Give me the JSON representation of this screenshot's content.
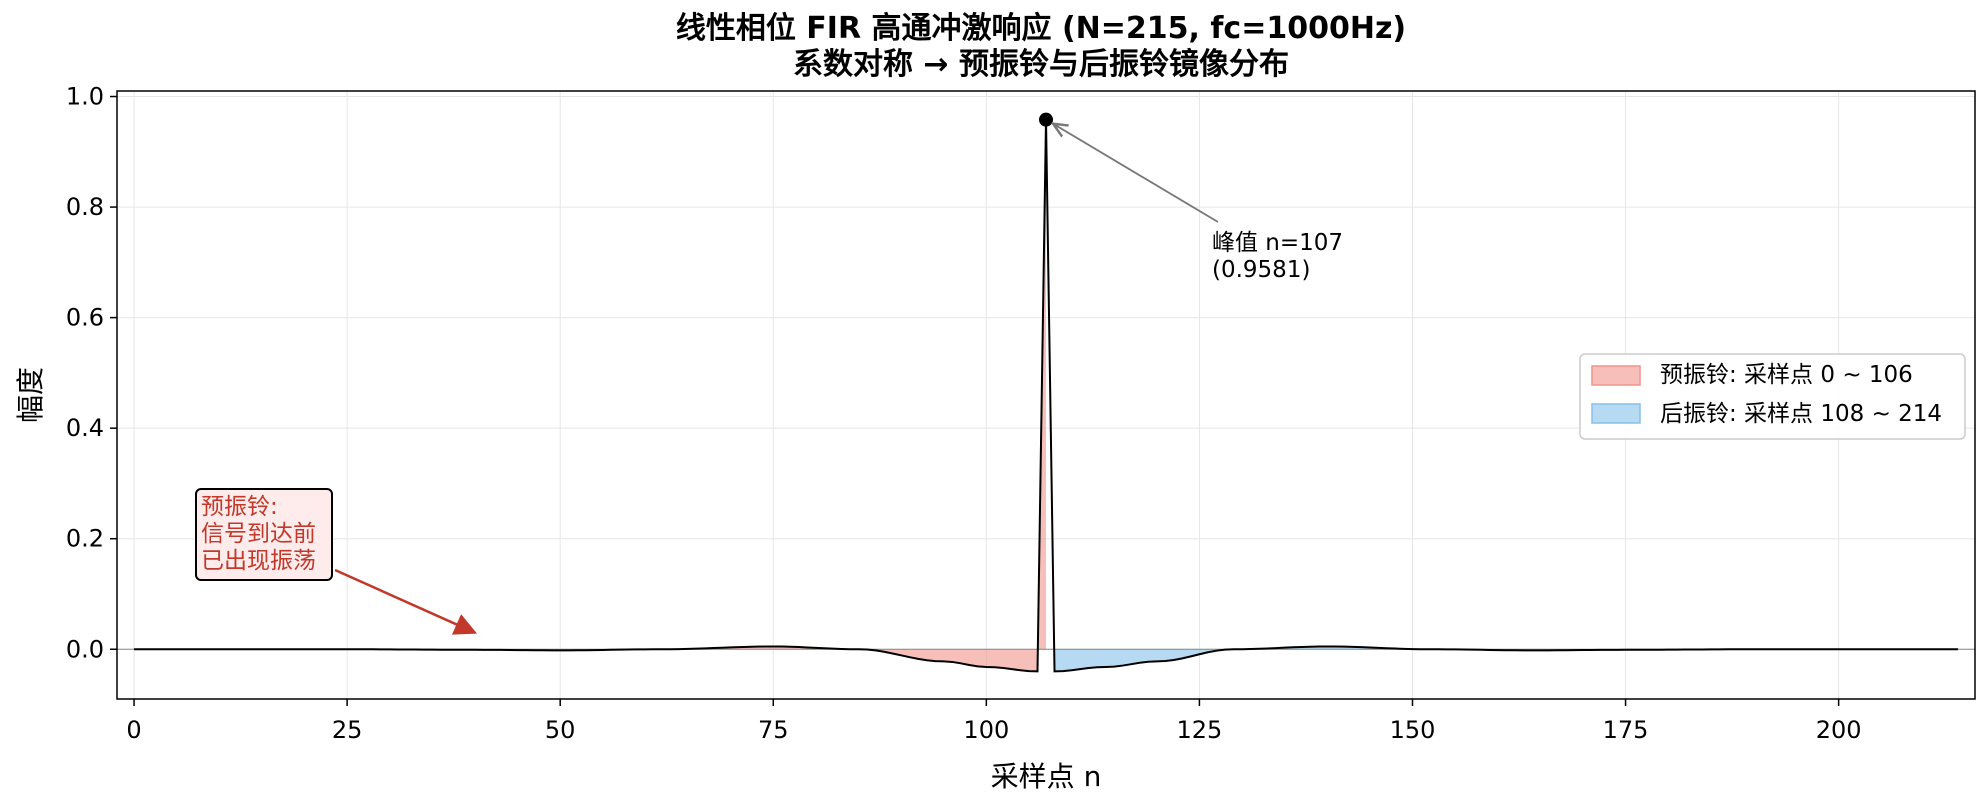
{
  "chart_data": {
    "type": "line",
    "title": "线性相位 FIR 高通冲激响应 (N=215, fc=1000Hz)",
    "subtitle": "系数对称 → 预振铃与后振铃镜像分布",
    "xlabel": "采样点 n",
    "ylabel": "幅度",
    "xlim": [
      -2,
      216
    ],
    "ylim": [
      -0.09,
      1.01
    ],
    "xticks": [
      0,
      25,
      50,
      75,
      100,
      125,
      150,
      175,
      200
    ],
    "yticks": [
      0.0,
      0.2,
      0.4,
      0.6,
      0.8,
      1.0
    ],
    "grid": true,
    "legend": {
      "placement": "center-right",
      "entries": [
        {
          "label": "预振铃: 采样点 0 ~ 106",
          "color": "#f1948a"
        },
        {
          "label": "后振铃: 采样点 108 ~ 214",
          "color": "#85c1e9"
        }
      ]
    },
    "peak": {
      "n": 107,
      "value": 0.9581,
      "label_line1": "峰值 n=107",
      "label_line2": "(0.9581)"
    },
    "annotation": {
      "lines": [
        "预振铃:",
        "信号到达前",
        "已出现振荡"
      ],
      "arrow_to": [
        40,
        0.03
      ]
    },
    "curve_key_points": {
      "x": [
        0,
        25,
        40,
        50,
        62,
        75,
        85,
        95,
        100,
        106,
        107,
        108,
        114,
        120,
        129,
        140,
        152,
        164,
        175,
        190,
        214
      ],
      "y": [
        0.0,
        0.0,
        -0.001,
        -0.002,
        0.0,
        0.005,
        0.0,
        -0.022,
        -0.032,
        -0.04,
        0.9581,
        -0.04,
        -0.032,
        -0.022,
        0.0,
        0.005,
        0.0,
        -0.002,
        -0.001,
        0.0,
        0.0
      ]
    },
    "colors": {
      "curve": "#000000",
      "pre_fill": "#f1948a",
      "post_fill": "#85c1e9",
      "pre_text": "#c0392b"
    }
  }
}
